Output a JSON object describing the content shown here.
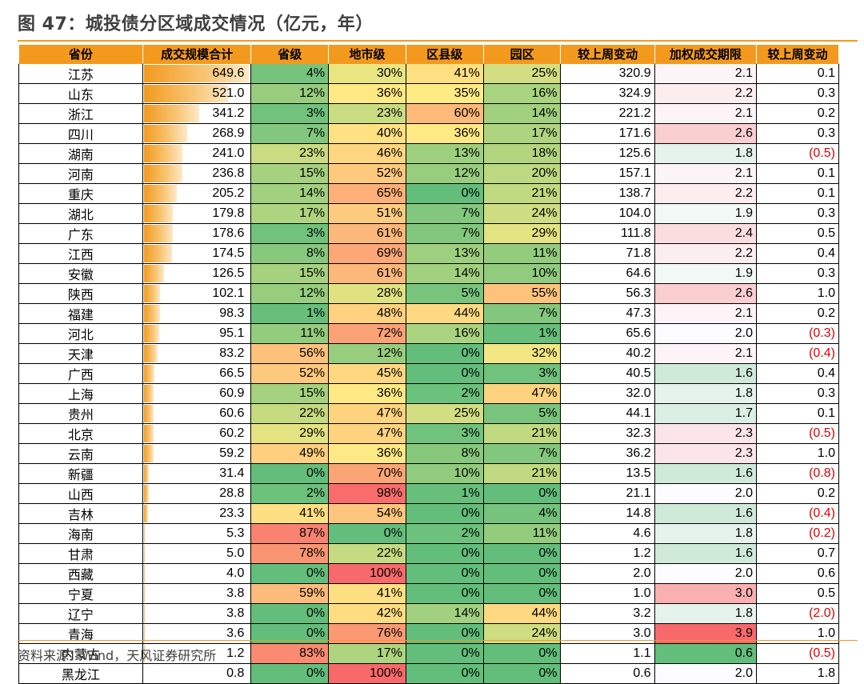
{
  "title": "图 47：城投债分区域成交情况（亿元，年）",
  "source": "资料来源：Wind，天风证券研究所",
  "columns": [
    "省份",
    "成交规模合计",
    "省级",
    "地市级",
    "区县级",
    "园区",
    "较上周变动",
    "加权成交期限",
    "较上周变动"
  ],
  "colors": {
    "header": "#f39a1e",
    "negative": "#e00000"
  },
  "rows": [
    {
      "prov": "江苏",
      "total": "649.6",
      "totalv": 649.6,
      "sheng": "4%",
      "shi": "30%",
      "xian": "41%",
      "yuan": "25%",
      "chg": "320.9",
      "term": "2.1",
      "termv": 2.1,
      "tchg": "0.1"
    },
    {
      "prov": "山东",
      "total": "521.0",
      "totalv": 521.0,
      "sheng": "12%",
      "shi": "36%",
      "xian": "35%",
      "yuan": "16%",
      "chg": "324.9",
      "term": "2.2",
      "termv": 2.2,
      "tchg": "0.3"
    },
    {
      "prov": "浙江",
      "total": "341.2",
      "totalv": 341.2,
      "sheng": "3%",
      "shi": "23%",
      "xian": "60%",
      "yuan": "14%",
      "chg": "221.2",
      "term": "2.1",
      "termv": 2.1,
      "tchg": "0.2"
    },
    {
      "prov": "四川",
      "total": "268.9",
      "totalv": 268.9,
      "sheng": "7%",
      "shi": "40%",
      "xian": "36%",
      "yuan": "17%",
      "chg": "171.6",
      "term": "2.6",
      "termv": 2.6,
      "tchg": "0.3"
    },
    {
      "prov": "湖南",
      "total": "241.0",
      "totalv": 241.0,
      "sheng": "23%",
      "shi": "46%",
      "xian": "13%",
      "yuan": "18%",
      "chg": "125.6",
      "term": "1.8",
      "termv": 1.8,
      "tchg": "(0.5)"
    },
    {
      "prov": "河南",
      "total": "236.8",
      "totalv": 236.8,
      "sheng": "15%",
      "shi": "52%",
      "xian": "12%",
      "yuan": "20%",
      "chg": "157.1",
      "term": "2.1",
      "termv": 2.1,
      "tchg": "0.1"
    },
    {
      "prov": "重庆",
      "total": "205.2",
      "totalv": 205.2,
      "sheng": "14%",
      "shi": "65%",
      "xian": "0%",
      "yuan": "21%",
      "chg": "138.7",
      "term": "2.2",
      "termv": 2.2,
      "tchg": "0.1"
    },
    {
      "prov": "湖北",
      "total": "179.8",
      "totalv": 179.8,
      "sheng": "17%",
      "shi": "51%",
      "xian": "7%",
      "yuan": "24%",
      "chg": "104.0",
      "term": "1.9",
      "termv": 1.9,
      "tchg": "0.3"
    },
    {
      "prov": "广东",
      "total": "178.6",
      "totalv": 178.6,
      "sheng": "3%",
      "shi": "61%",
      "xian": "7%",
      "yuan": "29%",
      "chg": "111.8",
      "term": "2.4",
      "termv": 2.4,
      "tchg": "0.5"
    },
    {
      "prov": "江西",
      "total": "174.5",
      "totalv": 174.5,
      "sheng": "8%",
      "shi": "69%",
      "xian": "13%",
      "yuan": "11%",
      "chg": "71.8",
      "term": "2.2",
      "termv": 2.2,
      "tchg": "0.4"
    },
    {
      "prov": "安徽",
      "total": "126.5",
      "totalv": 126.5,
      "sheng": "15%",
      "shi": "61%",
      "xian": "14%",
      "yuan": "10%",
      "chg": "64.6",
      "term": "1.9",
      "termv": 1.9,
      "tchg": "0.3"
    },
    {
      "prov": "陕西",
      "total": "102.1",
      "totalv": 102.1,
      "sheng": "12%",
      "shi": "28%",
      "xian": "5%",
      "yuan": "55%",
      "chg": "56.3",
      "term": "2.6",
      "termv": 2.6,
      "tchg": "1.0"
    },
    {
      "prov": "福建",
      "total": "98.3",
      "totalv": 98.3,
      "sheng": "1%",
      "shi": "48%",
      "xian": "44%",
      "yuan": "7%",
      "chg": "47.3",
      "term": "2.1",
      "termv": 2.1,
      "tchg": "0.2"
    },
    {
      "prov": "河北",
      "total": "95.1",
      "totalv": 95.1,
      "sheng": "11%",
      "shi": "72%",
      "xian": "16%",
      "yuan": "1%",
      "chg": "65.6",
      "term": "2.0",
      "termv": 2.0,
      "tchg": "(0.3)"
    },
    {
      "prov": "天津",
      "total": "83.2",
      "totalv": 83.2,
      "sheng": "56%",
      "shi": "12%",
      "xian": "0%",
      "yuan": "32%",
      "chg": "40.2",
      "term": "2.1",
      "termv": 2.1,
      "tchg": "(0.4)"
    },
    {
      "prov": "广西",
      "total": "66.5",
      "totalv": 66.5,
      "sheng": "52%",
      "shi": "45%",
      "xian": "0%",
      "yuan": "3%",
      "chg": "40.5",
      "term": "1.6",
      "termv": 1.6,
      "tchg": "0.4"
    },
    {
      "prov": "上海",
      "total": "60.9",
      "totalv": 60.9,
      "sheng": "15%",
      "shi": "36%",
      "xian": "2%",
      "yuan": "47%",
      "chg": "32.0",
      "term": "1.8",
      "termv": 1.8,
      "tchg": "0.3"
    },
    {
      "prov": "贵州",
      "total": "60.6",
      "totalv": 60.6,
      "sheng": "22%",
      "shi": "47%",
      "xian": "25%",
      "yuan": "5%",
      "chg": "44.1",
      "term": "1.7",
      "termv": 1.7,
      "tchg": "0.1"
    },
    {
      "prov": "北京",
      "total": "60.2",
      "totalv": 60.2,
      "sheng": "29%",
      "shi": "47%",
      "xian": "3%",
      "yuan": "21%",
      "chg": "32.3",
      "term": "2.3",
      "termv": 2.3,
      "tchg": "(0.5)"
    },
    {
      "prov": "云南",
      "total": "59.2",
      "totalv": 59.2,
      "sheng": "49%",
      "shi": "36%",
      "xian": "8%",
      "yuan": "7%",
      "chg": "36.2",
      "term": "2.3",
      "termv": 2.3,
      "tchg": "1.0"
    },
    {
      "prov": "新疆",
      "total": "31.4",
      "totalv": 31.4,
      "sheng": "0%",
      "shi": "70%",
      "xian": "10%",
      "yuan": "21%",
      "chg": "13.5",
      "term": "1.6",
      "termv": 1.6,
      "tchg": "(0.8)"
    },
    {
      "prov": "山西",
      "total": "28.8",
      "totalv": 28.8,
      "sheng": "2%",
      "shi": "98%",
      "xian": "1%",
      "yuan": "0%",
      "chg": "21.1",
      "term": "2.0",
      "termv": 2.0,
      "tchg": "0.2"
    },
    {
      "prov": "吉林",
      "total": "23.3",
      "totalv": 23.3,
      "sheng": "41%",
      "shi": "54%",
      "xian": "0%",
      "yuan": "4%",
      "chg": "14.8",
      "term": "1.6",
      "termv": 1.6,
      "tchg": "(0.4)"
    },
    {
      "prov": "海南",
      "total": "5.3",
      "totalv": 5.3,
      "sheng": "87%",
      "shi": "0%",
      "xian": "2%",
      "yuan": "11%",
      "chg": "4.6",
      "term": "1.8",
      "termv": 1.8,
      "tchg": "(0.2)"
    },
    {
      "prov": "甘肃",
      "total": "5.0",
      "totalv": 5.0,
      "sheng": "78%",
      "shi": "22%",
      "xian": "0%",
      "yuan": "0%",
      "chg": "1.2",
      "term": "1.6",
      "termv": 1.6,
      "tchg": "0.7"
    },
    {
      "prov": "西藏",
      "total": "4.0",
      "totalv": 4.0,
      "sheng": "0%",
      "shi": "100%",
      "xian": "0%",
      "yuan": "0%",
      "chg": "2.0",
      "term": "2.0",
      "termv": 2.0,
      "tchg": "0.6"
    },
    {
      "prov": "宁夏",
      "total": "3.8",
      "totalv": 3.8,
      "sheng": "59%",
      "shi": "41%",
      "xian": "0%",
      "yuan": "0%",
      "chg": "1.0",
      "term": "3.0",
      "termv": 3.0,
      "tchg": "0.5"
    },
    {
      "prov": "辽宁",
      "total": "3.8",
      "totalv": 3.8,
      "sheng": "0%",
      "shi": "42%",
      "xian": "14%",
      "yuan": "44%",
      "chg": "3.2",
      "term": "1.8",
      "termv": 1.8,
      "tchg": "(2.0)"
    },
    {
      "prov": "青海",
      "total": "3.6",
      "totalv": 3.6,
      "sheng": "0%",
      "shi": "76%",
      "xian": "0%",
      "yuan": "24%",
      "chg": "3.0",
      "term": "3.9",
      "termv": 3.9,
      "tchg": "1.0"
    },
    {
      "prov": "内蒙古",
      "total": "1.2",
      "totalv": 1.2,
      "sheng": "83%",
      "shi": "17%",
      "xian": "0%",
      "yuan": "0%",
      "chg": "1.1",
      "term": "0.6",
      "termv": 0.6,
      "tchg": "(0.5)"
    },
    {
      "prov": "黑龙江",
      "total": "0.8",
      "totalv": 0.8,
      "sheng": "0%",
      "shi": "100%",
      "xian": "0%",
      "yuan": "0%",
      "chg": "0.6",
      "term": "2.0",
      "termv": 2.0,
      "tchg": "1.8"
    }
  ]
}
